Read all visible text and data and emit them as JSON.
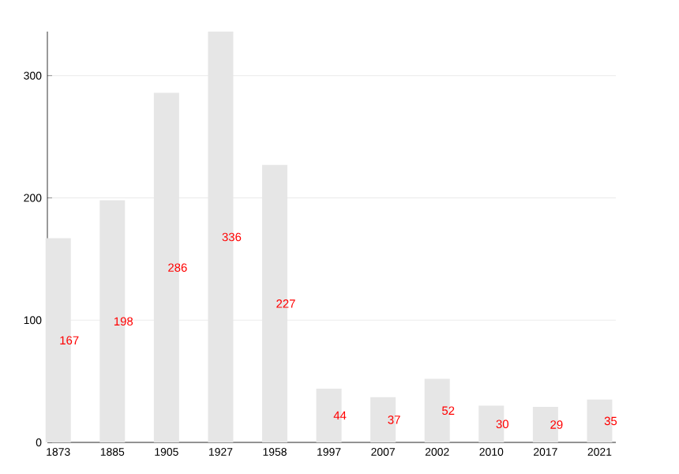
{
  "chart_data": {
    "type": "bar",
    "categories": [
      "1873",
      "1885",
      "1905",
      "1927",
      "1958",
      "1997",
      "2007",
      "2002",
      "2010",
      "2017",
      "2021"
    ],
    "values": [
      167,
      198,
      286,
      336,
      227,
      44,
      37,
      52,
      30,
      29,
      35
    ],
    "color": "#e6e6e6",
    "ylim": [
      0,
      336
    ],
    "yticks": [
      0,
      100,
      200,
      300
    ],
    "grid": "y",
    "data_labels": true
  }
}
